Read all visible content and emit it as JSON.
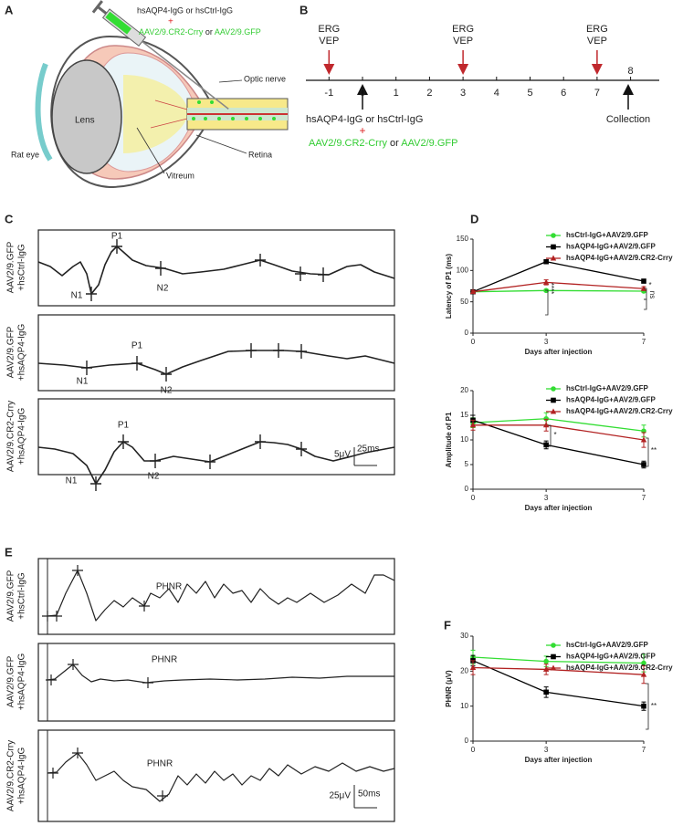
{
  "panel_labels": [
    "A",
    "B",
    "C",
    "D",
    "E",
    "F"
  ],
  "eye": {
    "injection": "hsAQP4-IgG or hsCtrl-IgG",
    "plus": "+",
    "vector_1": "AAV2/9.CR2-Crry",
    "or": "or",
    "vector_2": "AAV2/9.GFP",
    "lens": "Lens",
    "optic_nerve": "Optic nerve",
    "retina": "Retina",
    "vitreum": "Vitreum",
    "rat_eye": "Rat eye"
  },
  "timeline": {
    "ticks": [
      -1,
      0,
      1,
      2,
      3,
      4,
      5,
      6,
      7,
      8
    ],
    "recordings": [
      [
        "ERG",
        "VEP"
      ],
      [
        "ERG",
        "VEP"
      ],
      [
        "ERG",
        "VEP"
      ]
    ],
    "injection": "hsAQP4-IgG or hsCtrl-IgG",
    "plus": "+",
    "vector_1": "AAV2/9.CR2-Crry",
    "or": "or",
    "vector_2": "AAV2/9.GFP",
    "collection": "Collection"
  },
  "erg_traces": {
    "rows": [
      [
        "AAV2/9.GFP",
        "+hsCtrl-IgG"
      ],
      [
        "AAV2/9.GFP",
        "+hsAQP4-IgG"
      ],
      [
        "AAV2/9.CR2-Crry",
        "+hsAQP4-IgG"
      ]
    ],
    "peaks": [
      [
        "P1",
        "N1",
        "N2"
      ],
      [
        "P1",
        "N1",
        "N2"
      ],
      [
        "P1",
        "N1",
        "N2"
      ]
    ],
    "scale": [
      "5μV",
      "25ms"
    ]
  },
  "phnr_traces": {
    "rows": [
      [
        "AAV2/9.GFP",
        "+hsCtrl-IgG"
      ],
      [
        "AAV2/9.GFP",
        "+hsAQP4-IgG"
      ],
      [
        "AAV2/9.CR2-Crry",
        "+hsAQP4-IgG"
      ]
    ],
    "peaks": [
      "PHNR",
      "PHNR",
      "PHNR"
    ],
    "scale": [
      "25μV",
      "50ms"
    ]
  },
  "chart_data": [
    {
      "type": "line",
      "ylabel": "Latency of P1 (ms)",
      "xlabel": "Days after injection",
      "x": [
        0,
        3,
        7
      ],
      "xlim": [
        0,
        7
      ],
      "xticks": [
        0,
        3,
        7
      ],
      "ylim": [
        0,
        150
      ],
      "yticks": [
        0,
        50,
        100,
        150
      ],
      "series": [
        {
          "name": "hsCtrl-IgG+AAV2/9.GFP",
          "color": "#33dd33",
          "marker": "circle",
          "values": [
            66,
            68,
            67
          ],
          "errors": [
            2,
            2,
            2
          ]
        },
        {
          "name": "hsAQP4-IgG+AAV2/9.GFP",
          "color": "#000000",
          "marker": "square",
          "values": [
            66,
            114,
            83
          ],
          "errors": [
            2,
            3,
            3
          ]
        },
        {
          "name": "hsAQP4-IgG+AAV2/9.CR2-Crry",
          "color": "#b22222",
          "marker": "triangle",
          "values": [
            66,
            81,
            71
          ],
          "errors": [
            2,
            4,
            3
          ]
        }
      ],
      "annotations": [
        "****",
        "*",
        "ns"
      ]
    },
    {
      "type": "line",
      "ylabel": "Amplitude of P1",
      "xlabel": "Days after injection",
      "x": [
        0,
        3,
        7
      ],
      "xlim": [
        0,
        7
      ],
      "xticks": [
        0,
        3,
        7
      ],
      "ylim": [
        0,
        20
      ],
      "yticks": [
        0,
        5,
        10,
        15,
        20
      ],
      "series": [
        {
          "name": "hsCtrl-IgG+AAV2/9.GFP",
          "color": "#33dd33",
          "marker": "circle",
          "values": [
            13.5,
            14.3,
            11.8
          ],
          "errors": [
            1,
            1.2,
            1.2
          ]
        },
        {
          "name": "hsAQP4-IgG+AAV2/9.GFP",
          "color": "#000000",
          "marker": "square",
          "values": [
            14,
            9,
            5
          ],
          "errors": [
            1,
            0.8,
            0.7
          ]
        },
        {
          "name": "hsAQP4-IgG+AAV2/9.CR2-Crry",
          "color": "#b22222",
          "marker": "triangle",
          "values": [
            13,
            13,
            10
          ],
          "errors": [
            1,
            1.2,
            1.5
          ]
        }
      ],
      "annotations": [
        "*",
        "**"
      ]
    },
    {
      "type": "line",
      "ylabel": "PHNR (μV)",
      "xlabel": "Days after injection",
      "x": [
        0,
        3,
        7
      ],
      "xlim": [
        0,
        7
      ],
      "xticks": [
        0,
        3,
        7
      ],
      "ylim": [
        0,
        30
      ],
      "yticks": [
        0,
        10,
        20,
        30
      ],
      "series": [
        {
          "name": "hsCtrl-IgG+AAV2/9.GFP",
          "color": "#33dd33",
          "marker": "circle",
          "values": [
            24,
            22.8,
            22.3
          ],
          "errors": [
            2,
            1.5,
            2.5
          ]
        },
        {
          "name": "hsAQP4-IgG+AAV2/9.GFP",
          "color": "#000000",
          "marker": "square",
          "values": [
            23,
            14,
            10
          ],
          "errors": [
            1.5,
            1.5,
            1.2
          ]
        },
        {
          "name": "hsAQP4-IgG+AAV2/9.CR2-Crry",
          "color": "#b22222",
          "marker": "triangle",
          "values": [
            21,
            20.5,
            19
          ],
          "errors": [
            2,
            1.5,
            2.5
          ]
        }
      ],
      "annotations": [
        "**"
      ]
    }
  ]
}
